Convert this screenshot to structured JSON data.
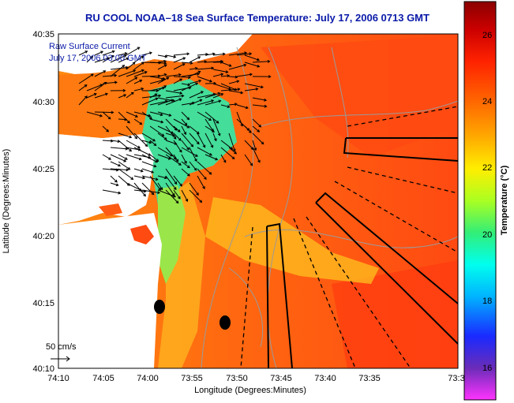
{
  "title": "RU COOL  NOAA–18  Sea Surface Temperature:  July 17, 2006 0713 GMT",
  "overlay": {
    "line1": "Raw Surface Current",
    "line2": "July 17, 2006 03:00 GMT"
  },
  "scale_arrow_label": "50 cm/s",
  "axes": {
    "xlabel": "Longitude (Degrees:Minutes)",
    "ylabel": "Latitude (Degrees:Minutes)",
    "x_ticks": [
      "74:10",
      "74:05",
      "74:00",
      "73:55",
      "73:50",
      "73:45",
      "73:40",
      "73:35",
      "73:3"
    ],
    "y_ticks": [
      "40:35",
      "40:30",
      "40:25",
      "40:20",
      "40:15",
      "40:10"
    ]
  },
  "colorbar": {
    "label": "Temperature (°C)",
    "ticks": [
      "26",
      "24",
      "22",
      "20",
      "18",
      "16"
    ],
    "range": [
      15,
      27
    ],
    "colors": [
      "#ff33ff",
      "#6a2cb8",
      "#1a2aff",
      "#00b4ff",
      "#00ffee",
      "#33ee77",
      "#aaff22",
      "#ffee00",
      "#ffaa00",
      "#ff6600",
      "#ff2200",
      "#cc0000",
      "#8b0000"
    ]
  },
  "map": {
    "colors": {
      "land": "#ffffff",
      "coast_fill": "#ff5a1a",
      "warm": "#ff6a10",
      "hot": "#ff3a10",
      "cool_green": "#44dd99",
      "yellow": "#ffd21f",
      "contour": "#9a9a9a",
      "vector": "#000000"
    }
  }
}
